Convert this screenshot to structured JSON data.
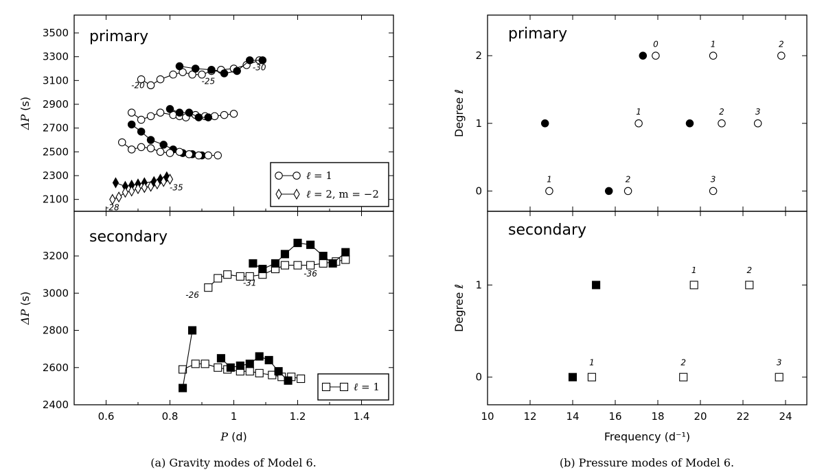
{
  "captions": {
    "a": "(a) Gravity modes of Model 6.",
    "b": "(b) Pressure modes of Model 6."
  },
  "chart_data": [
    {
      "id": "gp",
      "type": "line",
      "title": "primary",
      "xlabel_math": "P",
      "xlabel_unit": " (d)",
      "ylabel_math": "ΔP",
      "ylabel_unit": " (s)",
      "ylim": [
        2000,
        3650
      ],
      "yticks": [
        2100,
        2300,
        2500,
        2700,
        2900,
        3100,
        3300,
        3500
      ],
      "xlim": [
        0.5,
        1.5
      ],
      "series": [
        {
          "name": "l1_open_a",
          "marker": "circle",
          "filled": false,
          "x": [
            0.71,
            0.74,
            0.77,
            0.81,
            0.84,
            0.87,
            0.9,
            0.93,
            0.96,
            1.0,
            1.04,
            1.08
          ],
          "y": [
            3110,
            3060,
            3110,
            3150,
            3170,
            3150,
            3150,
            3180,
            3190,
            3200,
            3230,
            3270
          ]
        },
        {
          "name": "l1_filled_a",
          "marker": "circle",
          "filled": true,
          "x": [
            0.83,
            0.88,
            0.93,
            0.97,
            1.01,
            1.05,
            1.09
          ],
          "y": [
            3220,
            3200,
            3190,
            3160,
            3180,
            3270,
            3270
          ]
        },
        {
          "name": "l1_open_b",
          "marker": "circle",
          "filled": false,
          "x": [
            0.68,
            0.71,
            0.74,
            0.77,
            0.81,
            0.83,
            0.85,
            0.88,
            0.91,
            0.94,
            0.97,
            1.0
          ],
          "y": [
            2830,
            2770,
            2800,
            2830,
            2810,
            2800,
            2790,
            2810,
            2800,
            2800,
            2810,
            2820
          ]
        },
        {
          "name": "l1_filled_b",
          "marker": "circle",
          "filled": true,
          "x": [
            0.68,
            0.71,
            0.74,
            0.78,
            0.81,
            0.84,
            0.87,
            0.9
          ],
          "y": [
            2730,
            2670,
            2600,
            2560,
            2520,
            2490,
            2480,
            2470
          ]
        },
        {
          "name": "l1_filled_c",
          "marker": "circle",
          "filled": true,
          "x": [
            0.8,
            0.83,
            0.86,
            0.89,
            0.92
          ],
          "y": [
            2860,
            2830,
            2830,
            2790,
            2790
          ]
        },
        {
          "name": "l1_open_c",
          "marker": "circle",
          "filled": false,
          "x": [
            0.65,
            0.68,
            0.71,
            0.74,
            0.77,
            0.8,
            0.83,
            0.86,
            0.89,
            0.92,
            0.95
          ],
          "y": [
            2580,
            2520,
            2540,
            2530,
            2500,
            2490,
            2500,
            2480,
            2470,
            2470,
            2470
          ]
        },
        {
          "name": "l2_filled",
          "marker": "diamond",
          "filled": true,
          "x": [
            0.63,
            0.66,
            0.68,
            0.7,
            0.72,
            0.75,
            0.77,
            0.79
          ],
          "y": [
            2240,
            2210,
            2220,
            2230,
            2240,
            2250,
            2270,
            2290
          ]
        },
        {
          "name": "l2_open",
          "marker": "diamond",
          "filled": false,
          "x": [
            0.62,
            0.64,
            0.66,
            0.68,
            0.7,
            0.72,
            0.74,
            0.76,
            0.78,
            0.8
          ],
          "y": [
            2100,
            2120,
            2160,
            2170,
            2190,
            2200,
            2210,
            2230,
            2250,
            2270
          ]
        }
      ],
      "annotations": [
        {
          "text": "-20",
          "x": 0.7,
          "y": 3035
        },
        {
          "text": "-25",
          "x": 0.92,
          "y": 3070
        },
        {
          "text": "-30",
          "x": 1.08,
          "y": 3185
        },
        {
          "text": "-35",
          "x": 0.82,
          "y": 2175
        },
        {
          "text": "-28",
          "x": 0.62,
          "y": 2010
        }
      ],
      "legend": {
        "position": "lower-right",
        "entries": [
          {
            "marker": "circle",
            "label_pre": "ℓ",
            "label_post": " = 1"
          },
          {
            "marker": "diamond",
            "label_pre": "ℓ",
            "label_post": " = 2,  m = −2"
          }
        ]
      }
    },
    {
      "id": "gs",
      "type": "line",
      "title": "secondary",
      "ylabel_math": "ΔP",
      "ylabel_unit": " (s)",
      "ylim": [
        2400,
        3440
      ],
      "yticks": [
        2400,
        2600,
        2800,
        3000,
        3200
      ],
      "xlim": [
        0.5,
        1.5
      ],
      "xticks": [
        0.6,
        0.8,
        1.0,
        1.2,
        1.4
      ],
      "series": [
        {
          "name": "sec_open_a",
          "marker": "square",
          "filled": false,
          "x": [
            0.92,
            0.95,
            0.98,
            1.02,
            1.05,
            1.09,
            1.13,
            1.16,
            1.2,
            1.24,
            1.28,
            1.32,
            1.35
          ],
          "y": [
            3030,
            3080,
            3100,
            3090,
            3090,
            3100,
            3130,
            3150,
            3150,
            3150,
            3160,
            3170,
            3180
          ]
        },
        {
          "name": "sec_filled_a",
          "marker": "square",
          "filled": true,
          "x": [
            1.06,
            1.09,
            1.13,
            1.16,
            1.2,
            1.24,
            1.28,
            1.31,
            1.35
          ],
          "y": [
            3160,
            3130,
            3160,
            3210,
            3270,
            3260,
            3200,
            3160,
            3220
          ]
        },
        {
          "name": "sec_open_b",
          "marker": "square",
          "filled": false,
          "x": [
            0.84,
            0.88,
            0.91,
            0.95,
            0.98,
            1.02,
            1.05,
            1.08,
            1.12,
            1.15,
            1.18,
            1.21
          ],
          "y": [
            2590,
            2620,
            2620,
            2600,
            2590,
            2580,
            2580,
            2570,
            2560,
            2550,
            2550,
            2540
          ]
        },
        {
          "name": "sec_filled_b",
          "marker": "square",
          "filled": true,
          "x": [
            0.84,
            0.87
          ],
          "y": [
            2490,
            2800
          ]
        },
        {
          "name": "sec_filled_c",
          "marker": "square",
          "filled": true,
          "x": [
            0.96,
            0.99,
            1.02,
            1.05,
            1.08,
            1.11,
            1.14,
            1.17
          ],
          "y": [
            2650,
            2600,
            2610,
            2620,
            2660,
            2640,
            2580,
            2530
          ]
        }
      ],
      "annotations": [
        {
          "text": "-26",
          "x": 0.87,
          "y": 2975
        },
        {
          "text": "-31",
          "x": 1.05,
          "y": 3040
        },
        {
          "text": "-36",
          "x": 1.24,
          "y": 3090
        }
      ],
      "legend": {
        "position": "lower-right",
        "entries": [
          {
            "marker": "square",
            "label_pre": "ℓ",
            "label_post": " = 1"
          }
        ]
      }
    },
    {
      "id": "pp",
      "type": "scatter",
      "title": "primary",
      "ylabel": "Degree ℓ",
      "ylim": [
        -0.3,
        2.6
      ],
      "yticks": [
        0,
        1,
        2
      ],
      "xlim": [
        10,
        25
      ],
      "series": [
        {
          "name": "open",
          "marker": "circle",
          "filled": false,
          "x": [
            12.9,
            16.6,
            20.6,
            17.1,
            21.0,
            22.7,
            17.9,
            20.6,
            23.8
          ],
          "y": [
            0,
            0,
            0,
            1,
            1,
            1,
            2,
            2,
            2
          ]
        },
        {
          "name": "filled",
          "marker": "circle",
          "filled": true,
          "x": [
            15.7,
            12.7,
            19.5,
            17.3
          ],
          "y": [
            0,
            1,
            1,
            2
          ]
        }
      ],
      "annotations": [
        {
          "text": "1",
          "x": 12.9,
          "y": 0.13
        },
        {
          "text": "2",
          "x": 16.6,
          "y": 0.13
        },
        {
          "text": "3",
          "x": 20.6,
          "y": 0.13
        },
        {
          "text": "1",
          "x": 17.1,
          "y": 1.13
        },
        {
          "text": "2",
          "x": 21.0,
          "y": 1.13
        },
        {
          "text": "3",
          "x": 22.7,
          "y": 1.13
        },
        {
          "text": "0",
          "x": 17.9,
          "y": 2.13
        },
        {
          "text": "1",
          "x": 20.6,
          "y": 2.13
        },
        {
          "text": "2",
          "x": 23.8,
          "y": 2.13
        }
      ]
    },
    {
      "id": "ps",
      "type": "scatter",
      "title": "secondary",
      "ylabel": "Degree ℓ",
      "xlabel": "Frequency (d⁻¹)",
      "ylim": [
        -0.3,
        1.8
      ],
      "yticks": [
        0,
        1
      ],
      "xlim": [
        10,
        25
      ],
      "xticks": [
        10,
        12,
        14,
        16,
        18,
        20,
        22,
        24
      ],
      "series": [
        {
          "name": "open",
          "marker": "square",
          "filled": false,
          "x": [
            14.9,
            19.2,
            23.7,
            19.7,
            22.3
          ],
          "y": [
            0,
            0,
            0,
            1,
            1
          ]
        },
        {
          "name": "filled",
          "marker": "square",
          "filled": true,
          "x": [
            14.0,
            15.1
          ],
          "y": [
            0,
            1
          ]
        }
      ],
      "annotations": [
        {
          "text": "1",
          "x": 14.9,
          "y": 0.13
        },
        {
          "text": "2",
          "x": 19.2,
          "y": 0.13
        },
        {
          "text": "3",
          "x": 23.7,
          "y": 0.13
        },
        {
          "text": "1",
          "x": 19.7,
          "y": 1.13
        },
        {
          "text": "2",
          "x": 22.3,
          "y": 1.13
        }
      ]
    }
  ]
}
